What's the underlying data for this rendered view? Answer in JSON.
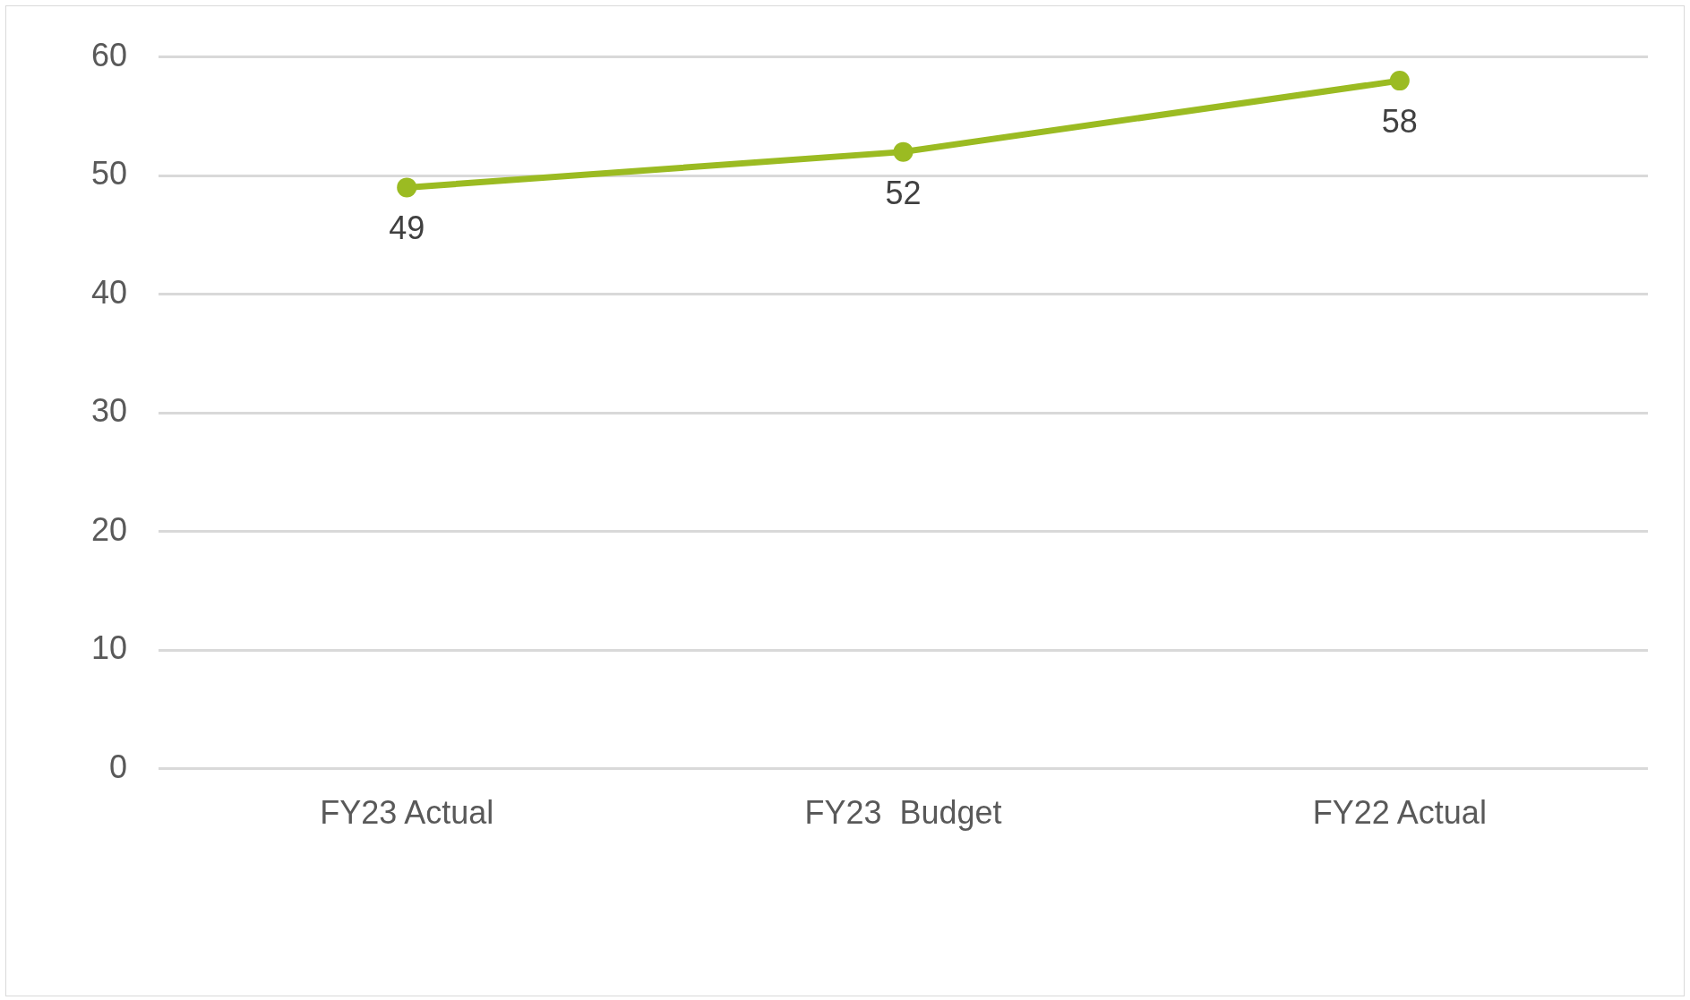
{
  "chart_data": {
    "type": "line",
    "categories": [
      "FY23 Actual",
      "FY23  Budget",
      "FY22 Actual"
    ],
    "series": [
      {
        "color": "#9bbb22",
        "values": [
          49,
          52,
          58
        ]
      }
    ],
    "ylim": [
      0,
      60
    ],
    "yticks": [
      0,
      10,
      20,
      30,
      40,
      50,
      60
    ],
    "grid": "y",
    "legend": false,
    "marker": "circle",
    "line_style": "solid",
    "data_labels": true
  }
}
